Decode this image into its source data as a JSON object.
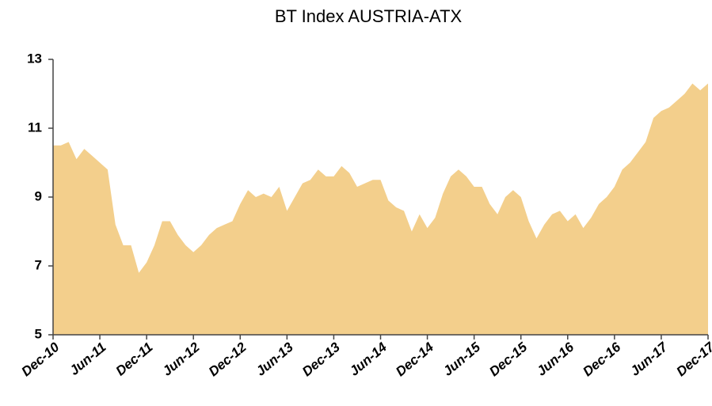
{
  "chart_data": {
    "type": "area",
    "title": "BT Index AUSTRIA-ATX",
    "categories": [
      "Dec-10",
      null,
      null,
      null,
      null,
      null,
      "Jun-11",
      null,
      null,
      null,
      null,
      null,
      "Dec-11",
      null,
      null,
      null,
      null,
      null,
      "Jun-12",
      null,
      null,
      null,
      null,
      null,
      "Dec-12",
      null,
      null,
      null,
      null,
      null,
      "Jun-13",
      null,
      null,
      null,
      null,
      null,
      "Dec-13",
      null,
      null,
      null,
      null,
      null,
      "Jun-14",
      null,
      null,
      null,
      null,
      null,
      "Dec-14",
      null,
      null,
      null,
      null,
      null,
      "Jun-15",
      null,
      null,
      null,
      null,
      null,
      "Dec-15",
      null,
      null,
      null,
      null,
      null,
      "Jun-16",
      null,
      null,
      null,
      null,
      null,
      "Dec-16",
      null,
      null,
      null,
      null,
      null,
      "Jun-17",
      null,
      null,
      null,
      null,
      null,
      "Dec-17"
    ],
    "values": [
      10.5,
      10.5,
      10.6,
      10.1,
      10.4,
      10.2,
      10.0,
      9.8,
      8.2,
      7.6,
      7.6,
      6.8,
      7.1,
      7.6,
      8.3,
      8.3,
      7.9,
      7.6,
      7.4,
      7.6,
      7.9,
      8.1,
      8.2,
      8.3,
      8.8,
      9.2,
      9.0,
      9.1,
      9.0,
      9.3,
      8.6,
      9.0,
      9.4,
      9.5,
      9.8,
      9.6,
      9.6,
      9.9,
      9.7,
      9.3,
      9.4,
      9.5,
      9.5,
      8.9,
      8.7,
      8.6,
      8.0,
      8.5,
      8.1,
      8.4,
      9.1,
      9.6,
      9.8,
      9.6,
      9.3,
      9.3,
      8.8,
      8.5,
      9.0,
      9.2,
      9.0,
      8.3,
      7.8,
      8.2,
      8.5,
      8.6,
      8.3,
      8.5,
      8.1,
      8.4,
      8.8,
      9.0,
      9.3,
      9.8,
      10.0,
      10.3,
      10.6,
      11.3,
      11.5,
      11.6,
      11.8,
      12.0,
      12.3,
      12.1,
      12.3
    ],
    "color": "#f3cf8c",
    "ylim": [
      5,
      13
    ],
    "yticks": [
      5,
      7,
      9,
      11,
      13
    ],
    "grid": false
  }
}
